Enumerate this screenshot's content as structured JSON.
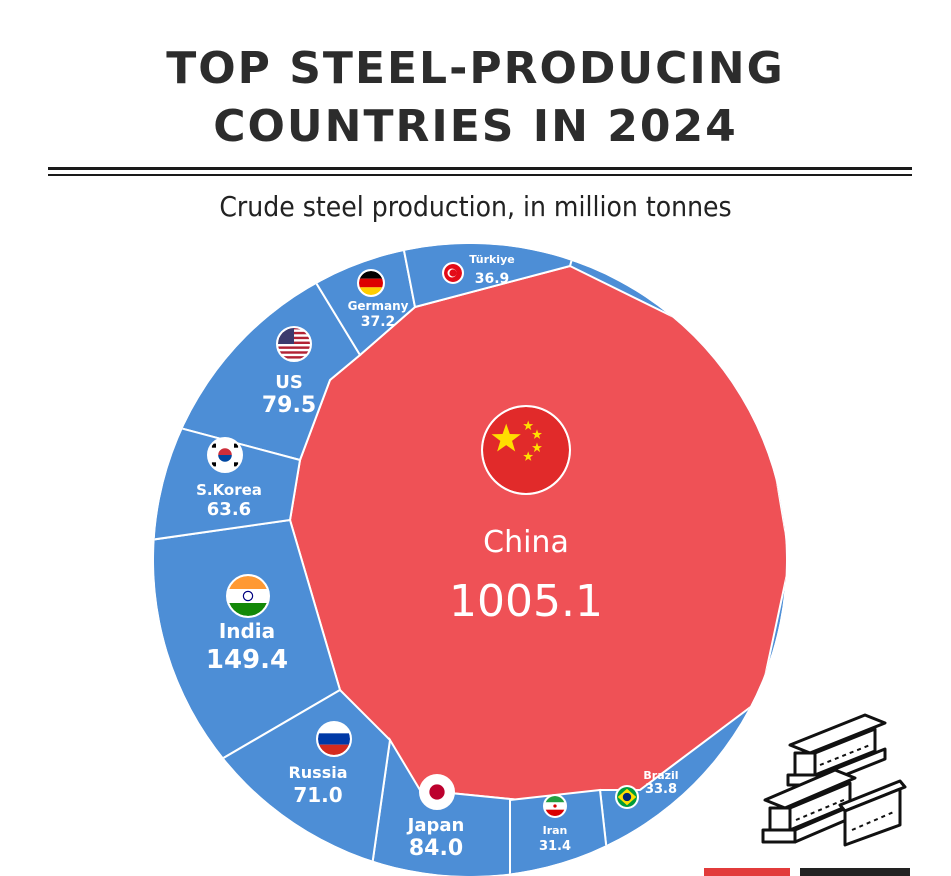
{
  "title_line1": "TOP STEEL-PRODUCING",
  "title_line2": "COUNTRIES IN 2024",
  "subtitle": "Crude steel production, in million tonnes",
  "colors": {
    "china": "#ef5156",
    "others": "#4d8ed6",
    "border": "#ffffff"
  },
  "chart_data": {
    "type": "voronoi-treemap",
    "unit": "million tonnes",
    "items": [
      {
        "name": "China",
        "value": 1005.1,
        "flag": "china-flag-icon"
      },
      {
        "name": "India",
        "value": 149.4,
        "flag": "india-flag-icon"
      },
      {
        "name": "Japan",
        "value": 84.0,
        "flag": "japan-flag-icon"
      },
      {
        "name": "US",
        "value": 79.5,
        "flag": "us-flag-icon"
      },
      {
        "name": "Russia",
        "value": 71.0,
        "flag": "russia-flag-icon"
      },
      {
        "name": "S.Korea",
        "value": 63.6,
        "flag": "south-korea-flag-icon"
      },
      {
        "name": "Germany",
        "value": 37.2,
        "flag": "germany-flag-icon"
      },
      {
        "name": "Türkiye",
        "value": 36.9,
        "flag": "turkey-flag-icon"
      },
      {
        "name": "Brazil",
        "value": 33.8,
        "flag": "brazil-flag-icon"
      },
      {
        "name": "Iran",
        "value": 31.4,
        "flag": "iran-flag-icon"
      }
    ]
  }
}
